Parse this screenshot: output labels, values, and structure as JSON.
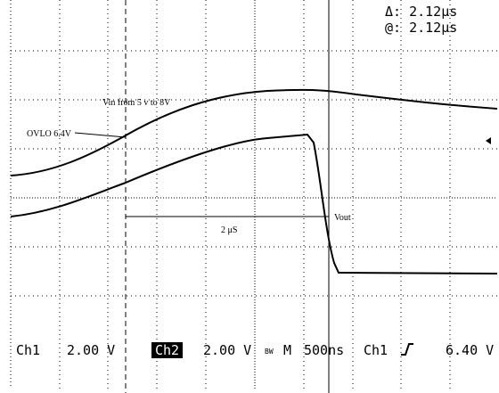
{
  "readout": {
    "delta": "Δ: 2.12μs",
    "at": "@: 2.12μs"
  },
  "annotations": {
    "vin": "Vin from 5 v to 8V",
    "ovlo": "OVLO 6.4V",
    "interval": "2 μS",
    "vout": "Vout"
  },
  "status_bar": {
    "ch1": "Ch1",
    "ch1_scale": "2.00 V",
    "ch2": "Ch2",
    "ch2_scale": "2.00 V",
    "bw": "BW",
    "mode": "M",
    "timebase": "500ns",
    "trigger_source": "Ch1",
    "trigger_level": "6.40 V"
  }
}
